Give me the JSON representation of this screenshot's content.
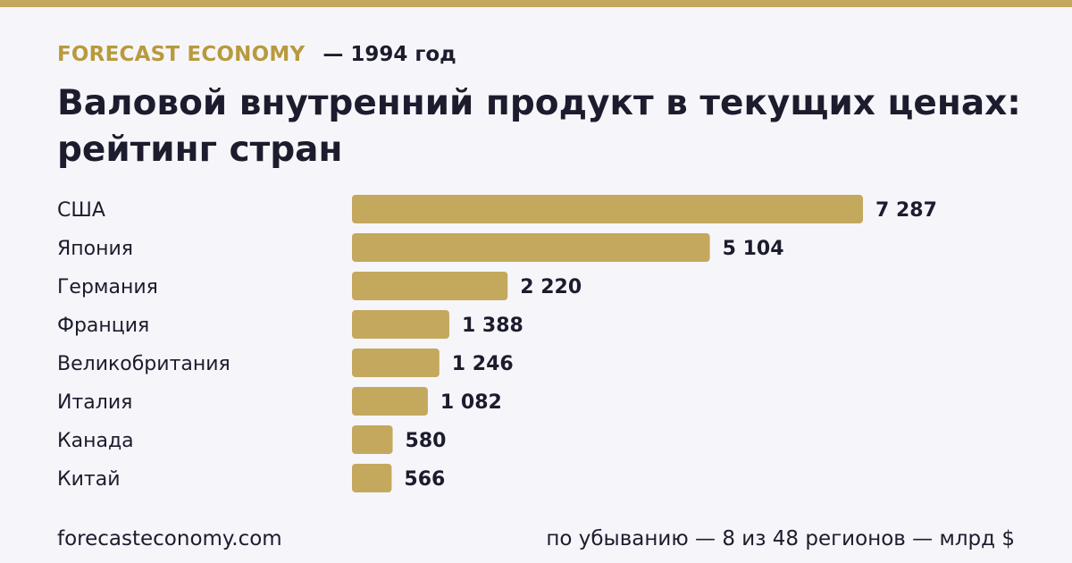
{
  "colors": {
    "accent": "#c4a85e",
    "brand": "#b89a3e",
    "text": "#1c1c2e",
    "background": "#f6f6fa"
  },
  "header": {
    "brand": "FORECAST ECONOMY",
    "year": "— 1994 год",
    "title": "Валовой внутренний продукт в текущих ценах: рейтинг стран"
  },
  "footer": {
    "site": "forecasteconomy.com",
    "note": "по убыванию — 8 из 48 регионов — млрд $"
  },
  "chart_data": {
    "type": "bar",
    "orientation": "horizontal",
    "categories": [
      "США",
      "Япония",
      "Германия",
      "Франция",
      "Великобритания",
      "Италия",
      "Канада",
      "Китай"
    ],
    "values": [
      7287,
      5104,
      2220,
      1388,
      1246,
      1082,
      580,
      566
    ],
    "value_labels": [
      "7 287",
      "5 104",
      "2 220",
      "1 388",
      "1 246",
      "1 082",
      "580",
      "566"
    ],
    "unit": "млрд $",
    "grid": false
  }
}
